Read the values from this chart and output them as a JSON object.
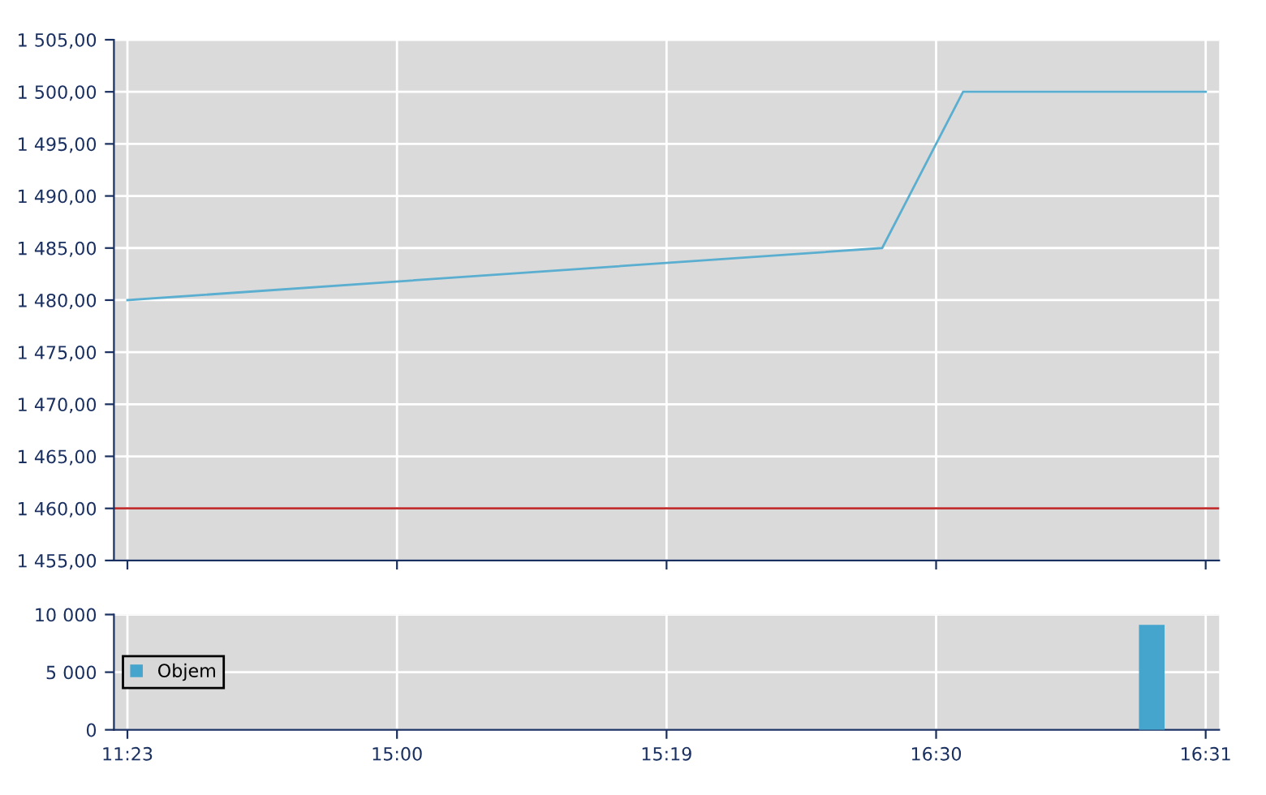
{
  "chart_data": [
    {
      "type": "line",
      "categories": [
        null,
        null,
        null,
        null,
        null,
        null,
        null,
        null,
        null,
        null,
        null,
        null,
        null,
        null,
        null,
        null,
        null,
        null,
        null,
        null,
        null,
        null,
        null,
        null,
        null,
        null,
        null,
        null,
        null,
        null,
        null,
        null,
        null,
        null,
        null,
        null,
        null,
        null,
        null,
        null,
        null
      ],
      "series": [
        {
          "color": "#5aaed0",
          "values": [
            1480,
            null,
            null,
            null,
            null,
            null,
            null,
            null,
            null,
            null,
            null,
            null,
            null,
            null,
            null,
            null,
            null,
            null,
            null,
            null,
            null,
            null,
            null,
            null,
            null,
            null,
            null,
            null,
            1485,
            null,
            null,
            1500,
            null,
            null,
            null,
            null,
            null,
            null,
            null,
            null,
            1500
          ]
        }
      ],
      "ylim": [
        1455,
        1505
      ],
      "yticks": [
        {
          "value": 1455,
          "label": "1 455,00"
        },
        {
          "value": 1460,
          "label": "1 460,00"
        },
        {
          "value": 1465,
          "label": "1 465,00"
        },
        {
          "value": 1470,
          "label": "1 470,00"
        },
        {
          "value": 1475,
          "label": "1 475,00"
        },
        {
          "value": 1480,
          "label": "1 480,00"
        },
        {
          "value": 1485,
          "label": "1 485,00"
        },
        {
          "value": 1490,
          "label": "1 490,00"
        },
        {
          "value": 1495,
          "label": "1 495,00"
        },
        {
          "value": 1500,
          "label": "1 500,00"
        },
        {
          "value": 1505,
          "label": "1 505,00"
        }
      ],
      "ref_lines": [
        {
          "axis": "y",
          "value": 1460,
          "color": "#c03030"
        }
      ],
      "grid": true,
      "marker": "none",
      "line_style": "solid"
    },
    {
      "type": "bar",
      "categories": [
        "11:23",
        null,
        null,
        null,
        null,
        null,
        null,
        null,
        null,
        null,
        "15:00",
        null,
        null,
        null,
        null,
        null,
        null,
        null,
        null,
        null,
        "15:19",
        null,
        null,
        null,
        null,
        null,
        null,
        null,
        null,
        null,
        "16:30",
        null,
        null,
        null,
        null,
        null,
        null,
        null,
        null,
        null,
        "16:31"
      ],
      "series": [
        {
          "name": "Objem",
          "color": "#46a5cd",
          "values": [
            null,
            null,
            null,
            null,
            null,
            null,
            null,
            null,
            null,
            null,
            null,
            null,
            null,
            null,
            null,
            null,
            null,
            null,
            null,
            null,
            null,
            null,
            null,
            null,
            null,
            null,
            null,
            null,
            null,
            null,
            null,
            null,
            null,
            null,
            null,
            null,
            null,
            null,
            9100,
            null,
            null
          ]
        }
      ],
      "ylim": [
        0,
        10000
      ],
      "yticks": [
        {
          "value": 0,
          "label": "0"
        },
        {
          "value": 5000,
          "label": "5 000"
        },
        {
          "value": 10000,
          "label": "10 000"
        }
      ],
      "grid": true,
      "legend": "left"
    }
  ]
}
